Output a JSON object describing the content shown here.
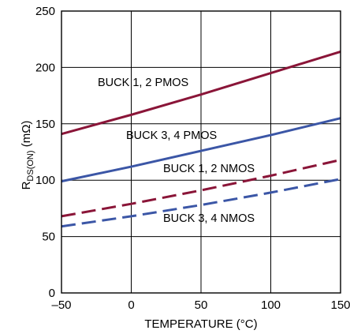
{
  "chart_data": {
    "type": "line",
    "title": "",
    "xlabel": "TEMPERATURE (°C)",
    "ylabel": {
      "prefix": "R",
      "subscript": "DS(ON)",
      "suffix": " (mΩ)"
    },
    "xlim": [
      -50,
      150
    ],
    "ylim": [
      0,
      250
    ],
    "x_ticks": [
      "–50",
      "0",
      "50",
      "100",
      "150"
    ],
    "y_ticks": [
      "0",
      "50",
      "100",
      "150",
      "200",
      "250"
    ],
    "grid": true,
    "colors": {
      "maroon": "#8a1538",
      "blue": "#3b56a6",
      "grid": "#000000"
    },
    "series": [
      {
        "name": "BUCK 1, 2 PMOS",
        "color": "#8a1538",
        "dash": false,
        "x": [
          -50,
          0,
          50,
          100,
          150
        ],
        "y": [
          141,
          158,
          176,
          195,
          214
        ]
      },
      {
        "name": "BUCK 3, 4 PMOS",
        "color": "#3b56a6",
        "dash": false,
        "x": [
          -50,
          0,
          50,
          100,
          150
        ],
        "y": [
          99,
          112,
          126,
          140,
          155
        ]
      },
      {
        "name": "BUCK 1, 2 NMOS",
        "color": "#8a1538",
        "dash": true,
        "x": [
          -50,
          0,
          50,
          100,
          150
        ],
        "y": [
          68,
          79,
          91,
          104,
          118
        ]
      },
      {
        "name": "BUCK 3, 4 NMOS",
        "color": "#3b56a6",
        "dash": true,
        "x": [
          -50,
          0,
          50,
          100,
          150
        ],
        "y": [
          59,
          68,
          78,
          89,
          101
        ]
      }
    ]
  }
}
